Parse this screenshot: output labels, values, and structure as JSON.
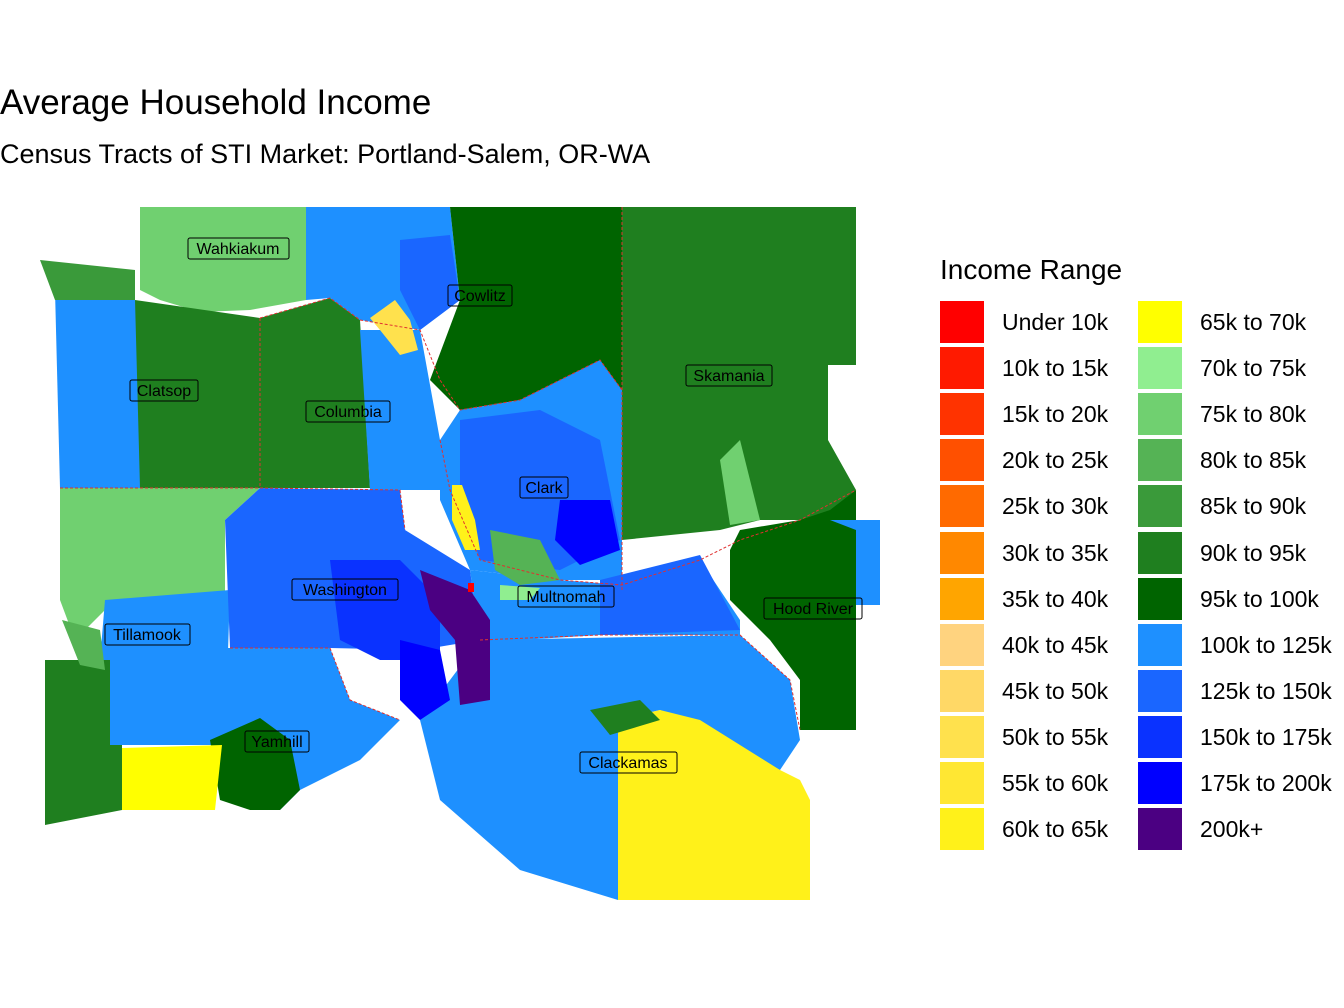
{
  "title": "Average Household Income",
  "subtitle": "Census Tracts of STI Market: Portland-Salem, OR-WA",
  "legend": {
    "title": "Income Range",
    "items": [
      {
        "label": "Under 10k",
        "color": "#ff0000"
      },
      {
        "label": "10k to 15k",
        "color": "#ff1a00"
      },
      {
        "label": "15k to 20k",
        "color": "#ff3300"
      },
      {
        "label": "20k to 25k",
        "color": "#ff5000"
      },
      {
        "label": "25k to 30k",
        "color": "#ff6a00"
      },
      {
        "label": "30k to 35k",
        "color": "#ff8800"
      },
      {
        "label": "35k to 40k",
        "color": "#ffa500"
      },
      {
        "label": "40k to 45k",
        "color": "#ffd37f"
      },
      {
        "label": "45k to 50k",
        "color": "#ffd866"
      },
      {
        "label": "50k to 55k",
        "color": "#ffe14d"
      },
      {
        "label": "55k to 60k",
        "color": "#ffe733"
      },
      {
        "label": "60k to 65k",
        "color": "#fff11a"
      },
      {
        "label": "65k to 70k",
        "color": "#ffff00"
      },
      {
        "label": "70k to 75k",
        "color": "#90ee90"
      },
      {
        "label": "75k to 80k",
        "color": "#70d070"
      },
      {
        "label": "80k to 85k",
        "color": "#55b355"
      },
      {
        "label": "85k to 90k",
        "color": "#3a9a3a"
      },
      {
        "label": "90k to 95k",
        "color": "#1f7f1f"
      },
      {
        "label": "95k to 100k",
        "color": "#006400"
      },
      {
        "label": "100k to 125k",
        "color": "#1e90ff"
      },
      {
        "label": "125k to 150k",
        "color": "#1a66ff"
      },
      {
        "label": "150k to 175k",
        "color": "#0a32ff"
      },
      {
        "label": "175k to 200k",
        "color": "#0000ff"
      },
      {
        "label": "200k+",
        "color": "#4b0082"
      }
    ]
  },
  "counties": [
    {
      "name": "Wahkiakum"
    },
    {
      "name": "Cowlitz"
    },
    {
      "name": "Skamania"
    },
    {
      "name": "Clatsop"
    },
    {
      "name": "Columbia"
    },
    {
      "name": "Clark"
    },
    {
      "name": "Washington"
    },
    {
      "name": "Multnomah"
    },
    {
      "name": "Hood River"
    },
    {
      "name": "Tillamook"
    },
    {
      "name": "Yamhill"
    },
    {
      "name": "Clackamas"
    }
  ]
}
